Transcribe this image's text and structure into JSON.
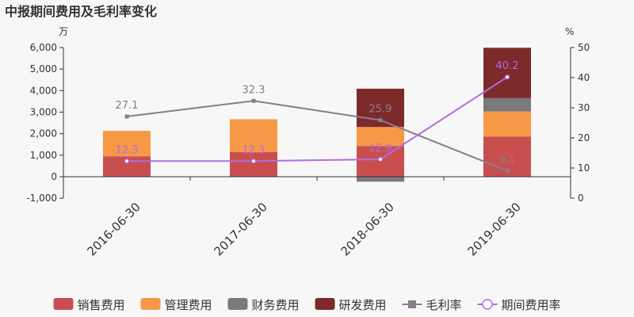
{
  "chart_data": {
    "type": "bar",
    "title": "中报期间费用及毛利率变化",
    "left_unit": "万",
    "right_unit": "%",
    "categories": [
      "2016-06-30",
      "2017-06-30",
      "2018-06-30",
      "2019-06-30"
    ],
    "left_axis": {
      "min": -1000,
      "max": 6000,
      "ticks": [
        "-1,000",
        "0",
        "1,000",
        "2,000",
        "3,000",
        "4,000",
        "5,000",
        "6,000"
      ],
      "tick_values": [
        -1000,
        0,
        1000,
        2000,
        3000,
        4000,
        5000,
        6000
      ]
    },
    "right_axis": {
      "min": 0,
      "max": 50,
      "ticks": [
        "0",
        "10",
        "20",
        "30",
        "40",
        "50"
      ],
      "tick_values": [
        0,
        10,
        20,
        30,
        40,
        50
      ]
    },
    "bar_series": [
      {
        "name": "销售费用",
        "color": "#c94f4f",
        "values": [
          950,
          1150,
          1430,
          1870
        ]
      },
      {
        "name": "管理费用",
        "color": "#f79846",
        "values": [
          1180,
          1520,
          880,
          1160
        ]
      },
      {
        "name": "财务费用",
        "color": "#7a7a7a",
        "values": [
          0,
          0,
          -230,
          620
        ]
      },
      {
        "name": "研发费用",
        "color": "#7d2a2a",
        "values": [
          0,
          0,
          1780,
          2340
        ]
      }
    ],
    "line_series": [
      {
        "name": "毛利率",
        "color": "#8c7b8e",
        "values": [
          27.1,
          32.3,
          25.9,
          9.1
        ],
        "labels": [
          "27.1",
          "32.3",
          "25.9",
          "9.1"
        ],
        "marker": "square"
      },
      {
        "name": "期间费用率",
        "color": "#b06ce0",
        "values": [
          12.3,
          12.3,
          12.9,
          40.2
        ],
        "labels": [
          "12.3",
          "12.3",
          "12.9",
          "40.2"
        ],
        "marker": "circle"
      }
    ],
    "legend_position": "bottom"
  }
}
